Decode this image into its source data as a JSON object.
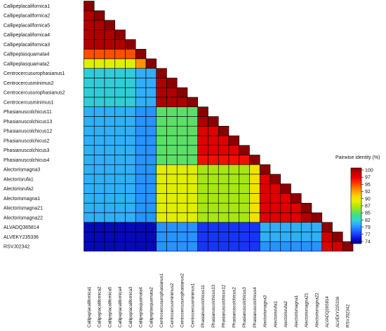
{
  "chart_data": {
    "type": "heatmap",
    "labels": [
      "Callipeplacalifornica1",
      "Callipeplacalifornica2",
      "Callipeplacalifornica5",
      "Callipeplacalifornica4",
      "Callipeplacalifornica3",
      "Callipeplasquamata4",
      "Callipeplasquamata2",
      "Centrocercusurophasianus1",
      "Centrocercusminimus2",
      "Centrocercusurophasianus2",
      "Centrocercusminimus1",
      "Phasianuscolchicus11",
      "Phasianuscolchicus13",
      "Phasianuscolchicus12",
      "Phasianuscolchicus2",
      "Phasianuscolchicus3",
      "Phasianuscolchicus4",
      "Alectorismagna3",
      "Alectorisrufa1",
      "Alectorisrufa2",
      "Alectorismagna1",
      "Alectorismagna21",
      "Alectorismagna22",
      "ALVADQ365814",
      "ALVEKY235336",
      "RSVJ02342"
    ],
    "column_labels": [
      "Callipeplacalifornica1",
      "Callipeplacalifornica2",
      "Callipeplacalifornica5",
      "Callipeplacalifornica4",
      "Callipeplacalifornica3",
      "Callipeplasquamata4",
      "Callipeplasquamata2",
      "Centrocercusurophasianus1",
      "Centrocercusminimus2",
      "Centrocercusurophasianus2",
      "Centrocercusminimus1",
      "Phasianuscolchicus11",
      "Phasianuscolchicus13",
      "Phasianuscolchicus12",
      "Phasianuscolchicus2",
      "Phasianuscolchicus3",
      "Phasianuscolchicus4",
      "Alectorismagna3",
      "Alectorisrufa1",
      "Alectorisrufa2",
      "Alectorismagna1",
      "Alectorismagna21",
      "Alectorismagna22",
      "ALVADQ365814",
      "ALVEKY235336",
      "RSVJ02342"
    ],
    "matrix_lower": [
      [
        100
      ],
      [
        99,
        100
      ],
      [
        99,
        99,
        100
      ],
      [
        99,
        99,
        99,
        100
      ],
      [
        99,
        99,
        99,
        99,
        100
      ],
      [
        94,
        94,
        94,
        94,
        94,
        100
      ],
      [
        88,
        88,
        88,
        88,
        88,
        92,
        100
      ],
      [
        81,
        81,
        81,
        81,
        81,
        80,
        80,
        100
      ],
      [
        81,
        81,
        81,
        81,
        81,
        80,
        80,
        99,
        100
      ],
      [
        81,
        81,
        81,
        81,
        81,
        80,
        80,
        99,
        99,
        100
      ],
      [
        81,
        81,
        81,
        81,
        81,
        80,
        80,
        99,
        99,
        99,
        100
      ],
      [
        80,
        80,
        80,
        80,
        80,
        79,
        79,
        84,
        84,
        84,
        84,
        100
      ],
      [
        80,
        80,
        80,
        80,
        80,
        79,
        79,
        84,
        84,
        84,
        84,
        99,
        100
      ],
      [
        80,
        80,
        80,
        80,
        80,
        79,
        79,
        84,
        84,
        84,
        84,
        97,
        97,
        100
      ],
      [
        80,
        80,
        80,
        80,
        80,
        79,
        79,
        84,
        84,
        84,
        84,
        97,
        97,
        97,
        100
      ],
      [
        80,
        80,
        80,
        80,
        80,
        79,
        79,
        84,
        84,
        84,
        84,
        97,
        97,
        97,
        97,
        100
      ],
      [
        80,
        80,
        80,
        80,
        80,
        79,
        79,
        84,
        84,
        84,
        84,
        96,
        96,
        96,
        96,
        96,
        100
      ],
      [
        80,
        80,
        80,
        80,
        80,
        79,
        79,
        88,
        88,
        88,
        88,
        86,
        86,
        86,
        86,
        86,
        89,
        100
      ],
      [
        80,
        80,
        80,
        80,
        80,
        79,
        79,
        88,
        88,
        88,
        88,
        86,
        86,
        86,
        86,
        86,
        89,
        97,
        100
      ],
      [
        80,
        80,
        80,
        80,
        80,
        79,
        79,
        88,
        88,
        88,
        88,
        86,
        86,
        86,
        86,
        86,
        89,
        97,
        97,
        100
      ],
      [
        80,
        80,
        80,
        80,
        80,
        79,
        79,
        88,
        88,
        88,
        88,
        86,
        86,
        86,
        86,
        86,
        89,
        97,
        97,
        97,
        100
      ],
      [
        80,
        80,
        80,
        80,
        80,
        79,
        79,
        88,
        88,
        88,
        88,
        86,
        86,
        86,
        86,
        86,
        89,
        97,
        97,
        97,
        97,
        100
      ],
      [
        80,
        80,
        80,
        80,
        80,
        79,
        79,
        88,
        88,
        88,
        88,
        86,
        86,
        86,
        86,
        86,
        89,
        97,
        97,
        97,
        97,
        99,
        100
      ],
      [
        74,
        74,
        74,
        74,
        74,
        74,
        74,
        79,
        79,
        79,
        79,
        76,
        76,
        76,
        76,
        76,
        76,
        80,
        80,
        80,
        80,
        80,
        80,
        100
      ],
      [
        74,
        74,
        74,
        74,
        74,
        74,
        74,
        79,
        79,
        79,
        79,
        76,
        76,
        76,
        76,
        76,
        76,
        80,
        80,
        80,
        80,
        80,
        80,
        98,
        100
      ],
      [
        74,
        74,
        74,
        74,
        74,
        74,
        74,
        79,
        79,
        79,
        79,
        76,
        76,
        76,
        76,
        76,
        76,
        79,
        79,
        79,
        79,
        79,
        79,
        97,
        98,
        100
      ]
    ],
    "value_range": [
      73,
      100
    ],
    "legend": {
      "title": "Pairwise identity (%)",
      "ticks": [
        "100",
        "97",
        "95",
        "92",
        "90",
        "87",
        "85",
        "82",
        "79",
        "77",
        "74"
      ],
      "placement": "right",
      "colors": [
        "#8b0000",
        "#c80000",
        "#e60000",
        "#ff2a00",
        "#ff6a00",
        "#ffa500",
        "#ffd400",
        "#e8ef00",
        "#b6ea00",
        "#80e040",
        "#33e090",
        "#33d8c8",
        "#2fa8ff",
        "#1e78ff",
        "#1a40ff",
        "#0a10d8",
        "#000080"
      ]
    }
  }
}
